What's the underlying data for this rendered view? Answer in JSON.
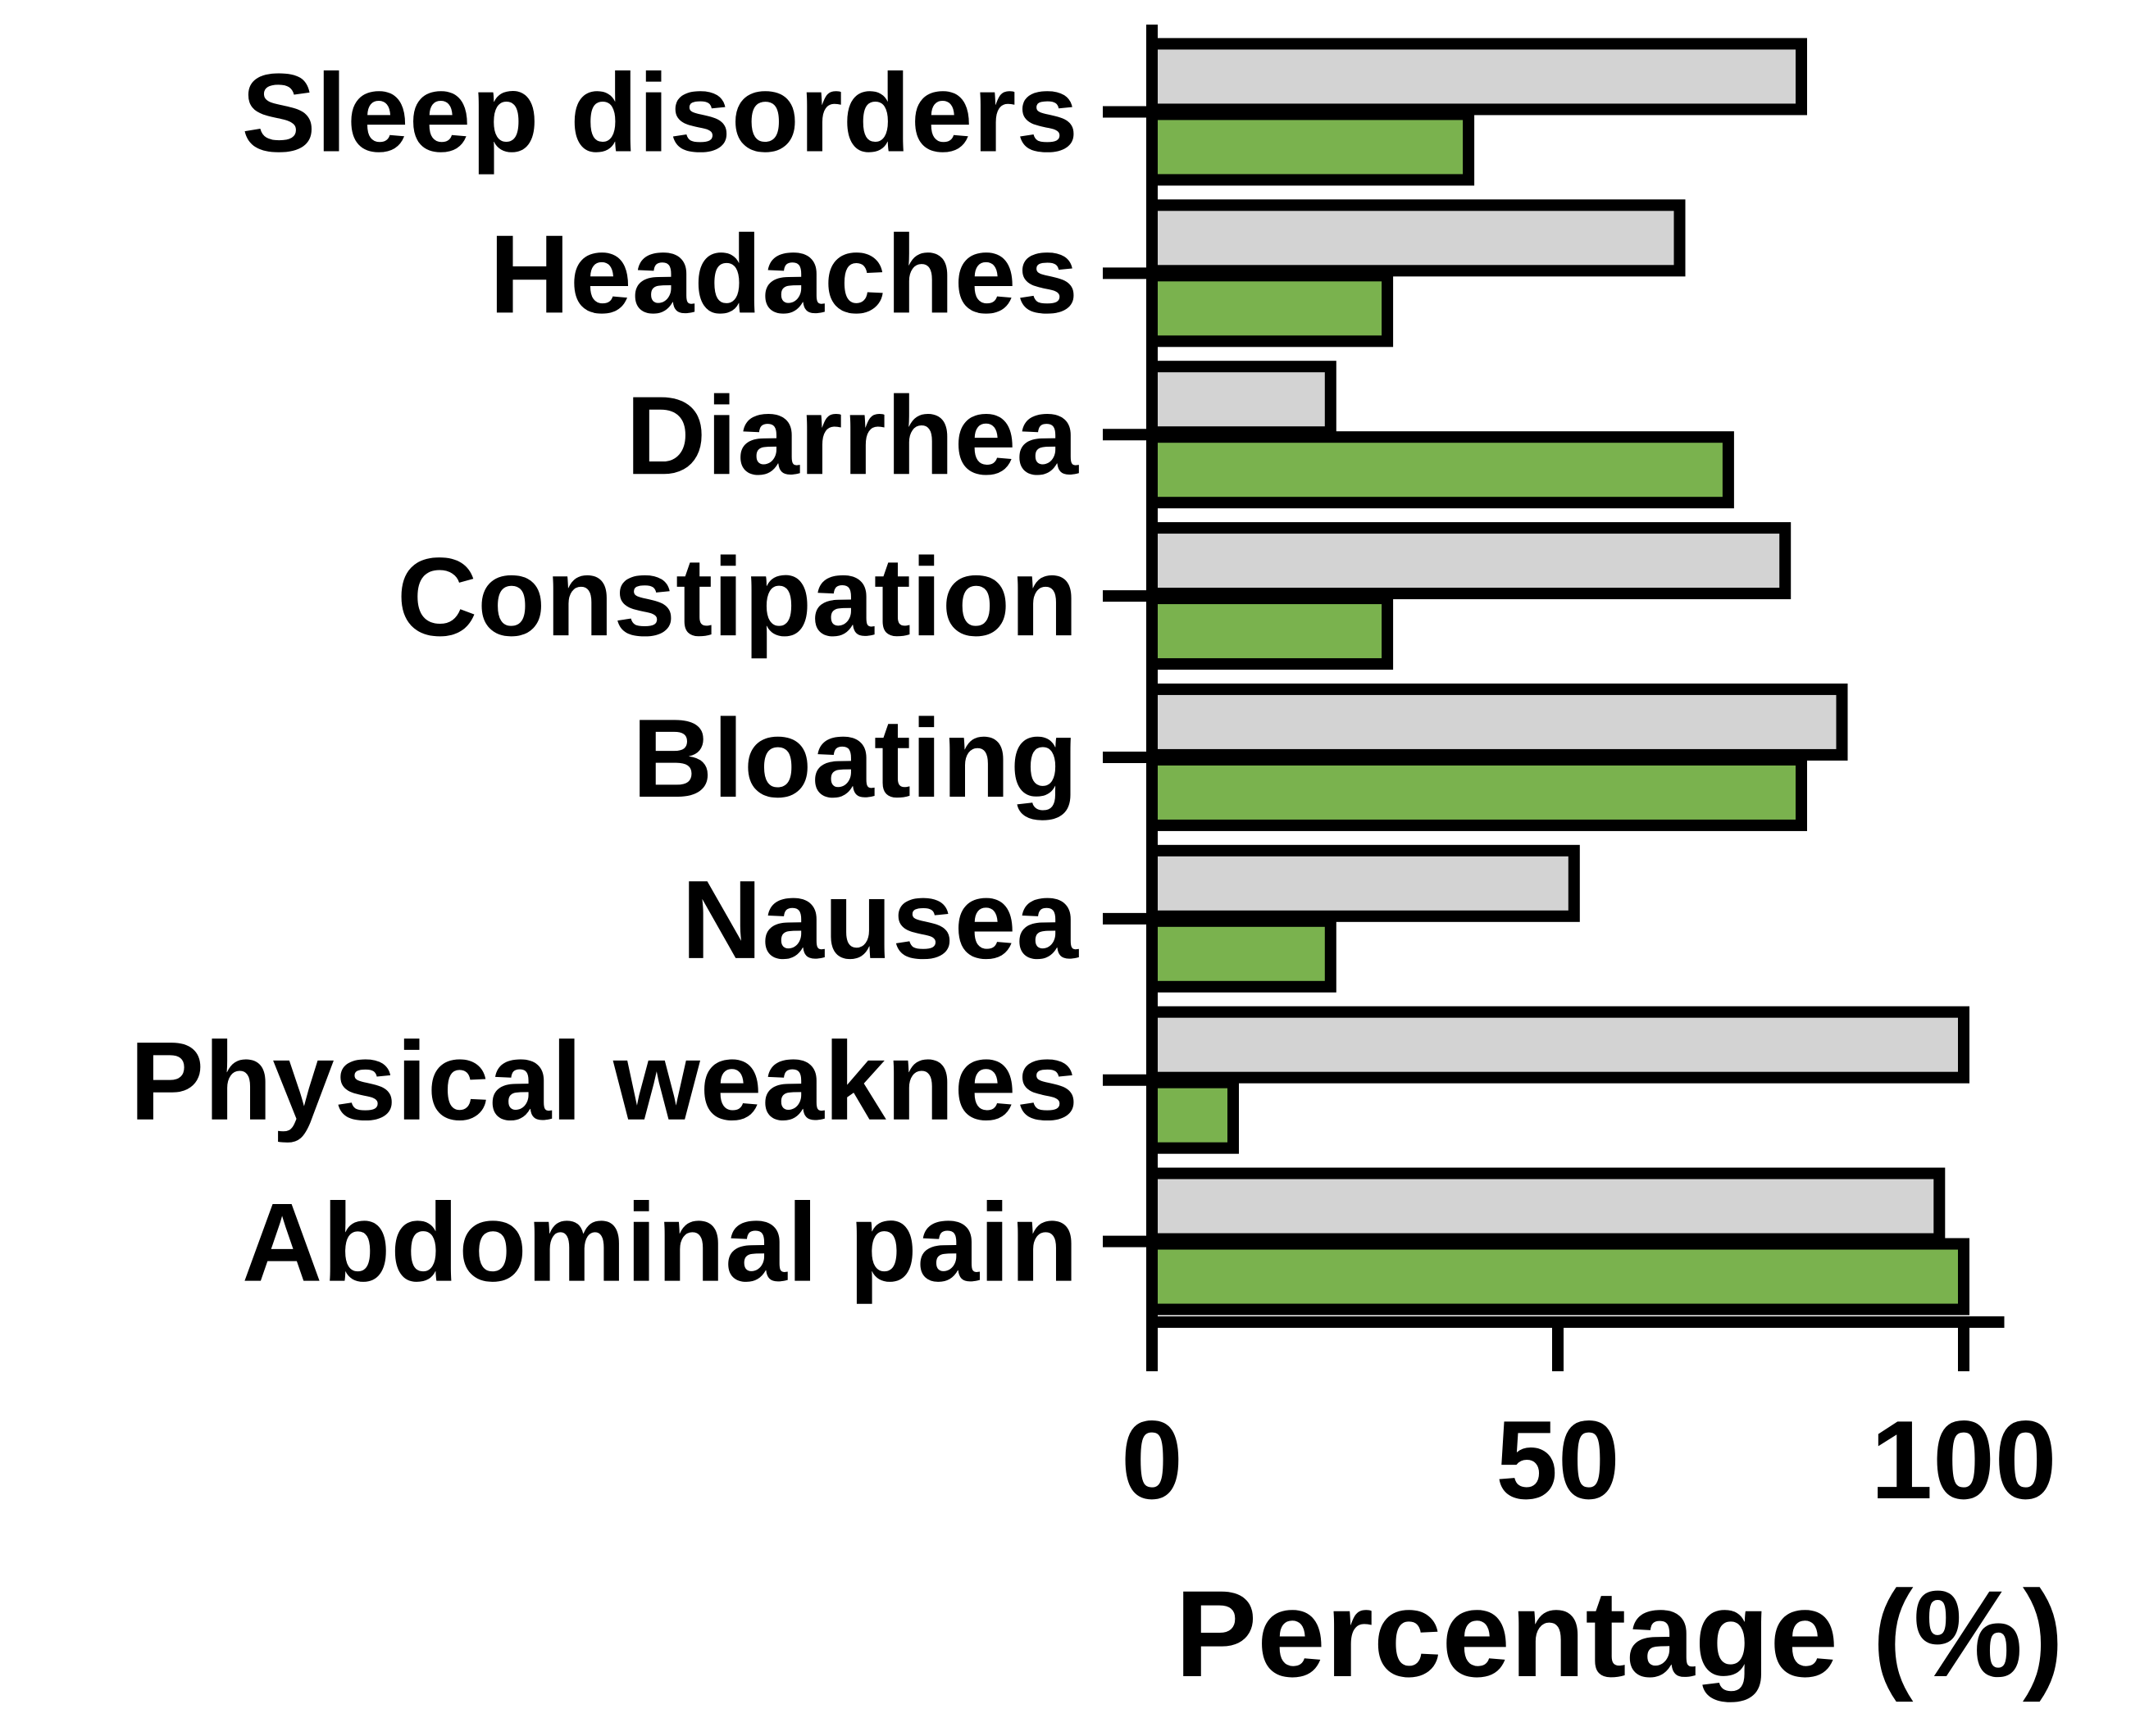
{
  "chart_data": {
    "type": "bar",
    "orientation": "horizontal",
    "categories": [
      "Sleep disorders",
      "Headaches",
      "Diarrhea",
      "Constipation",
      "Bloating",
      "Nausea",
      "Physical weaknes",
      "Abdominal pain"
    ],
    "series": [
      {
        "values": [
          80,
          65,
          22,
          78,
          85,
          52,
          100,
          97
        ],
        "color": "#d3d3d3"
      },
      {
        "values": [
          39,
          29,
          71,
          29,
          80,
          22,
          10,
          100
        ],
        "color": "#7ab24e"
      }
    ],
    "xlabel": "Percentage (%)",
    "xlim": [
      0,
      105
    ],
    "xticks": [
      0,
      50,
      100
    ],
    "xtick_labels": [
      "0",
      "50",
      "100"
    ],
    "grid": false,
    "legend": "none"
  }
}
